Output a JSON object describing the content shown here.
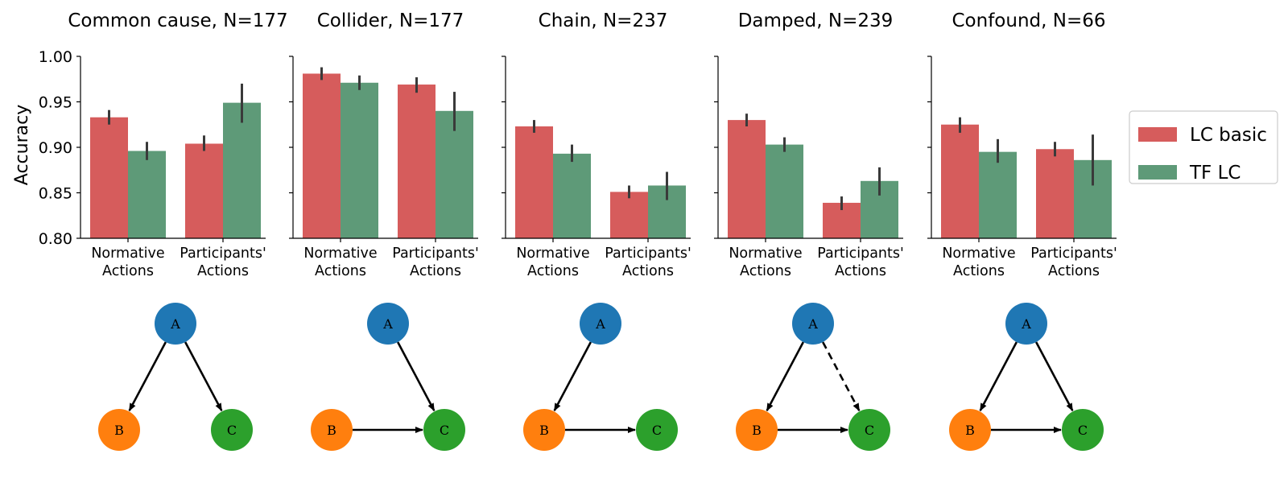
{
  "chart_data": {
    "type": "bar",
    "ylabel": "Accuracy",
    "ylim": [
      0.8,
      1.0
    ],
    "yticks": [
      "0.80",
      "0.85",
      "0.90",
      "0.95",
      "1.00"
    ],
    "categories": [
      [
        "Normative",
        "Actions"
      ],
      [
        "Participants'",
        "Actions"
      ]
    ],
    "legend": {
      "position": "right",
      "entries": [
        {
          "label": "LC basic",
          "color": "#d65c5c"
        },
        {
          "label": "TF LC",
          "color": "#5e9a78"
        }
      ]
    },
    "panels": [
      {
        "title": "Common cause, N=177",
        "series": [
          {
            "name": "LC basic",
            "values": [
              0.933,
              0.904
            ],
            "err_low": [
              0.925,
              0.896
            ],
            "err_high": [
              0.941,
              0.913
            ]
          },
          {
            "name": "TF LC",
            "values": [
              0.896,
              0.949
            ],
            "err_low": [
              0.886,
              0.927
            ],
            "err_high": [
              0.906,
              0.97
            ]
          }
        ],
        "graph": {
          "edges": [
            [
              "A",
              "B",
              "solid"
            ],
            [
              "A",
              "C",
              "solid"
            ]
          ]
        }
      },
      {
        "title": "Collider, N=177",
        "series": [
          {
            "name": "LC basic",
            "values": [
              0.981,
              0.969
            ],
            "err_low": [
              0.974,
              0.96
            ],
            "err_high": [
              0.988,
              0.977
            ]
          },
          {
            "name": "TF LC",
            "values": [
              0.971,
              0.94
            ],
            "err_low": [
              0.963,
              0.918
            ],
            "err_high": [
              0.979,
              0.961
            ]
          }
        ],
        "graph": {
          "edges": [
            [
              "A",
              "C",
              "solid"
            ],
            [
              "B",
              "C",
              "solid"
            ]
          ]
        }
      },
      {
        "title": "Chain, N=237",
        "series": [
          {
            "name": "LC basic",
            "values": [
              0.923,
              0.851
            ],
            "err_low": [
              0.916,
              0.844
            ],
            "err_high": [
              0.93,
              0.858
            ]
          },
          {
            "name": "TF LC",
            "values": [
              0.893,
              0.858
            ],
            "err_low": [
              0.884,
              0.842
            ],
            "err_high": [
              0.903,
              0.873
            ]
          }
        ],
        "graph": {
          "edges": [
            [
              "A",
              "B",
              "solid"
            ],
            [
              "B",
              "C",
              "solid"
            ]
          ]
        }
      },
      {
        "title": "Damped, N=239",
        "series": [
          {
            "name": "LC basic",
            "values": [
              0.93,
              0.839
            ],
            "err_low": [
              0.923,
              0.831
            ],
            "err_high": [
              0.937,
              0.846
            ]
          },
          {
            "name": "TF LC",
            "values": [
              0.903,
              0.863
            ],
            "err_low": [
              0.895,
              0.847
            ],
            "err_high": [
              0.911,
              0.878
            ]
          }
        ],
        "graph": {
          "edges": [
            [
              "A",
              "B",
              "solid"
            ],
            [
              "A",
              "C",
              "dashed"
            ],
            [
              "B",
              "C",
              "solid"
            ]
          ]
        }
      },
      {
        "title": "Confound, N=66",
        "series": [
          {
            "name": "LC basic",
            "values": [
              0.925,
              0.898
            ],
            "err_low": [
              0.916,
              0.89
            ],
            "err_high": [
              0.933,
              0.906
            ]
          },
          {
            "name": "TF LC",
            "values": [
              0.895,
              0.886
            ],
            "err_low": [
              0.883,
              0.858
            ],
            "err_high": [
              0.909,
              0.914
            ]
          }
        ],
        "graph": {
          "edges": [
            [
              "A",
              "B",
              "solid"
            ],
            [
              "A",
              "C",
              "solid"
            ],
            [
              "B",
              "C",
              "solid"
            ]
          ]
        }
      }
    ],
    "graph_nodes": [
      {
        "id": "A",
        "label": "A",
        "color": "#1f77b4"
      },
      {
        "id": "B",
        "label": "B",
        "color": "#ff7f0e"
      },
      {
        "id": "C",
        "label": "C",
        "color": "#2ca02c"
      }
    ],
    "grid": false
  }
}
